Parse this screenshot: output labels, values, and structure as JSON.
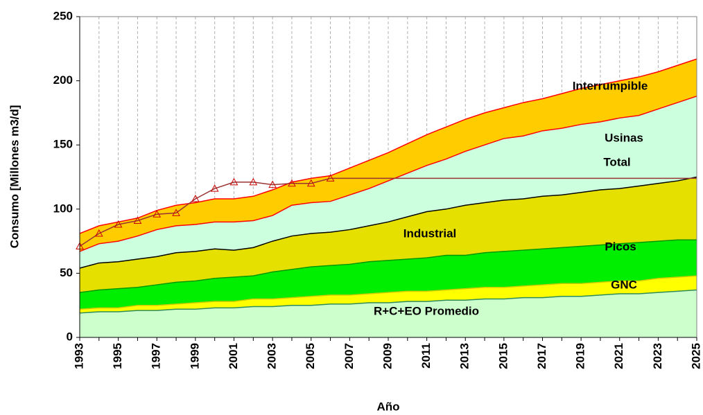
{
  "chart_data": {
    "type": "stacked-area",
    "categories": [
      "1993",
      "1994",
      "1995",
      "1996",
      "1997",
      "1998",
      "1999",
      "2000",
      "2001",
      "2002",
      "2003",
      "2004",
      "2005",
      "2006",
      "2007",
      "2008",
      "2009",
      "2010",
      "2011",
      "2012",
      "2013",
      "2014",
      "2015",
      "2016",
      "2017",
      "2018",
      "2019",
      "2020",
      "2021",
      "2022",
      "2023",
      "2024",
      "2025"
    ],
    "x_label": "Año",
    "y_label": "Consumo [Millones m3/d]",
    "ylim": [
      0,
      250
    ],
    "yticks": [
      0,
      50,
      100,
      150,
      200,
      250
    ],
    "grid": true,
    "series": [
      {
        "name": "R+C+EO  Promedio",
        "color": "#ccffcc",
        "edge": "#2e8b57",
        "values": [
          19,
          20,
          20,
          21,
          21,
          22,
          22,
          23,
          23,
          24,
          24,
          25,
          25,
          26,
          26,
          27,
          27,
          28,
          28,
          29,
          29,
          30,
          30,
          31,
          31,
          32,
          32,
          33,
          34,
          34,
          35,
          36,
          37
        ]
      },
      {
        "name": "GNC",
        "color": "#ffff00",
        "edge": "#cccc00",
        "values": [
          3,
          3,
          3,
          4,
          4,
          4,
          5,
          5,
          5,
          6,
          6,
          6,
          7,
          7,
          7,
          7,
          8,
          8,
          8,
          8,
          9,
          9,
          9,
          9,
          10,
          10,
          10,
          10,
          10,
          10,
          11,
          11,
          11
        ]
      },
      {
        "name": "Picos",
        "color": "#00ee00",
        "edge": "#009900",
        "values": [
          13,
          14,
          15,
          14,
          16,
          17,
          17,
          18,
          19,
          18,
          21,
          22,
          23,
          23,
          24,
          25,
          25,
          25,
          26,
          27,
          26,
          27,
          28,
          28,
          28,
          28,
          29,
          29,
          29,
          30,
          29,
          29,
          28
        ]
      },
      {
        "name": "Industrial",
        "color": "#e6e000",
        "edge": "#000000",
        "values": [
          19,
          21,
          21,
          22,
          22,
          23,
          23,
          23,
          21,
          22,
          24,
          26,
          26,
          26,
          27,
          28,
          30,
          33,
          36,
          36,
          39,
          39,
          40,
          40,
          41,
          41,
          42,
          43,
          43,
          44,
          45,
          46,
          49
        ]
      },
      {
        "name": "Usinas",
        "color": "#ccffdd",
        "edge": "#ff0000",
        "values": [
          13,
          15,
          16,
          18,
          21,
          21,
          21,
          21,
          22,
          21,
          20,
          24,
          24,
          24,
          27,
          29,
          32,
          34,
          36,
          39,
          42,
          45,
          48,
          49,
          51,
          52,
          53,
          53,
          55,
          55,
          58,
          61,
          63
        ]
      },
      {
        "name": "Interrumpible",
        "color": "#ffcc00",
        "edge": "#ff0000",
        "values": [
          14,
          14,
          15,
          14,
          15,
          16,
          17,
          18,
          18,
          19,
          20,
          18,
          19,
          20,
          21,
          22,
          22,
          23,
          24,
          25,
          25,
          25,
          24,
          26,
          25,
          27,
          28,
          29,
          29,
          30,
          29,
          29,
          29
        ]
      }
    ],
    "line": {
      "name": "Total",
      "color": "#993333",
      "marker_color": "#cc0000",
      "marker_last": "2006",
      "values": [
        71,
        81,
        88,
        91,
        96,
        97,
        108,
        116,
        121,
        121,
        119,
        120,
        120,
        124,
        124,
        124,
        124,
        124,
        124,
        124,
        124,
        124,
        124,
        124,
        124,
        124,
        124,
        124,
        124,
        124,
        124,
        124,
        124
      ]
    }
  }
}
